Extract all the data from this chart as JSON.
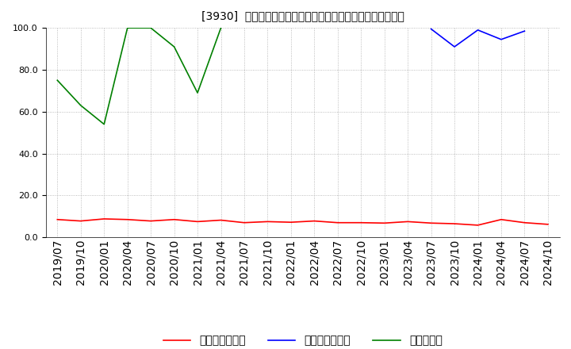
{
  "title": "[3930]  売上債権回転率、買入債務回転率、在庫回転率の推移",
  "xlabels": [
    "2019/07",
    "2019/10",
    "2020/01",
    "2020/04",
    "2020/07",
    "2020/10",
    "2021/01",
    "2021/04",
    "2021/07",
    "2021/10",
    "2022/01",
    "2022/04",
    "2022/07",
    "2022/10",
    "2023/01",
    "2023/04",
    "2023/07",
    "2023/10",
    "2024/01",
    "2024/04",
    "2024/07",
    "2024/10"
  ],
  "receivable_turnover": [
    8.5,
    7.8,
    8.8,
    8.5,
    7.8,
    8.5,
    7.5,
    8.2,
    7.0,
    7.5,
    7.2,
    7.8,
    7.0,
    7.0,
    6.8,
    7.5,
    6.8,
    6.5,
    5.8,
    8.5,
    7.0,
    6.2
  ],
  "payable_turnover": [
    null,
    null,
    null,
    null,
    null,
    null,
    null,
    null,
    null,
    null,
    null,
    null,
    null,
    null,
    null,
    null,
    99.5,
    91.0,
    99.0,
    94.5,
    98.5,
    null
  ],
  "inventory_turnover": [
    75.0,
    63.0,
    54.0,
    100.0,
    100.0,
    91.0,
    69.0,
    100.0,
    null,
    null,
    null,
    null,
    null,
    null,
    null,
    null,
    null,
    null,
    null,
    null,
    null,
    null
  ],
  "receivable_color": "#ff0000",
  "payable_color": "#0000ff",
  "inventory_color": "#008000",
  "ylim": [
    0.0,
    100.0
  ],
  "yticks": [
    0.0,
    20.0,
    40.0,
    60.0,
    80.0,
    100.0
  ],
  "bg_color": "#ffffff",
  "grid_color": "#aaaaaa",
  "legend_receivable": "売上債権回転率",
  "legend_payable": "買入債務回転率",
  "legend_inventory": "在庫回転率"
}
